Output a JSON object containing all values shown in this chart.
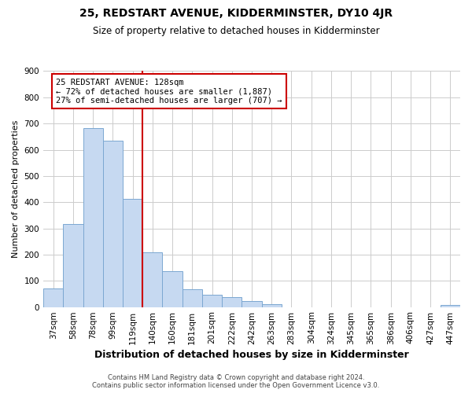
{
  "title": "25, REDSTART AVENUE, KIDDERMINSTER, DY10 4JR",
  "subtitle": "Size of property relative to detached houses in Kidderminster",
  "xlabel": "Distribution of detached houses by size in Kidderminster",
  "ylabel": "Number of detached properties",
  "categories": [
    "37sqm",
    "58sqm",
    "78sqm",
    "99sqm",
    "119sqm",
    "140sqm",
    "160sqm",
    "181sqm",
    "201sqm",
    "222sqm",
    "242sqm",
    "263sqm",
    "283sqm",
    "304sqm",
    "324sqm",
    "345sqm",
    "365sqm",
    "386sqm",
    "406sqm",
    "427sqm",
    "447sqm"
  ],
  "values": [
    70,
    318,
    682,
    634,
    413,
    210,
    138,
    68,
    48,
    37,
    22,
    10,
    0,
    0,
    0,
    0,
    0,
    0,
    0,
    0,
    7
  ],
  "bar_color": "#c6d9f1",
  "bar_edge_color": "#7ba7d1",
  "vertical_line_color": "#cc0000",
  "annotation_line1": "25 REDSTART AVENUE: 128sqm",
  "annotation_line2": "← 72% of detached houses are smaller (1,887)",
  "annotation_line3": "27% of semi-detached houses are larger (707) →",
  "annotation_box_color": "#ffffff",
  "annotation_box_edge_color": "#cc0000",
  "ylim": [
    0,
    900
  ],
  "yticks": [
    0,
    100,
    200,
    300,
    400,
    500,
    600,
    700,
    800,
    900
  ],
  "footer_line1": "Contains HM Land Registry data © Crown copyright and database right 2024.",
  "footer_line2": "Contains public sector information licensed under the Open Government Licence v3.0.",
  "bg_color": "#ffffff",
  "grid_color": "#cccccc",
  "title_fontsize": 10,
  "subtitle_fontsize": 8.5,
  "xlabel_fontsize": 9,
  "ylabel_fontsize": 8,
  "tick_fontsize": 7.5,
  "annotation_fontsize": 7.5,
  "footer_fontsize": 6
}
